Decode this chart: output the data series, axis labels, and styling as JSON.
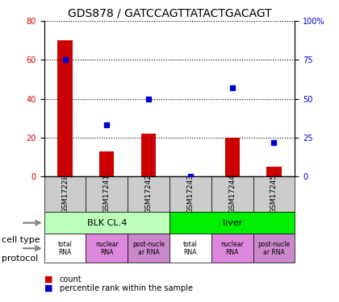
{
  "title": "GDS878 / GATCCAGTTATACTGACAGT",
  "samples": [
    "GSM17228",
    "GSM17241",
    "GSM17242",
    "GSM17243",
    "GSM17244",
    "GSM17245"
  ],
  "counts": [
    70,
    13,
    22,
    0,
    20,
    5
  ],
  "percentiles": [
    75,
    33,
    50,
    0,
    57,
    22
  ],
  "left_ylim": [
    0,
    80
  ],
  "right_ylim": [
    0,
    100
  ],
  "left_yticks": [
    0,
    20,
    40,
    60,
    80
  ],
  "right_yticks": [
    0,
    25,
    50,
    75,
    100
  ],
  "right_yticklabels": [
    "0",
    "25",
    "50",
    "75",
    "100%"
  ],
  "bar_color": "#cc0000",
  "dot_color": "#0000cc",
  "cell_type_colors": {
    "BLK CL.4": "#bbffbb",
    "liver": "#00ee00"
  },
  "protocols": [
    "total\nRNA",
    "nuclear\nRNA",
    "post-nucle\nar RNA",
    "total\nRNA",
    "nuclear\nRNA",
    "post-nucle\nar RNA"
  ],
  "protocol_colors": [
    "#ffffff",
    "#dd88dd",
    "#cc88cc",
    "#ffffff",
    "#dd88dd",
    "#cc88cc"
  ],
  "sample_bg_color": "#cccccc",
  "legend_count_color": "#cc0000",
  "legend_dot_color": "#0000cc",
  "title_fontsize": 10,
  "tick_fontsize": 7,
  "label_fontsize": 8
}
